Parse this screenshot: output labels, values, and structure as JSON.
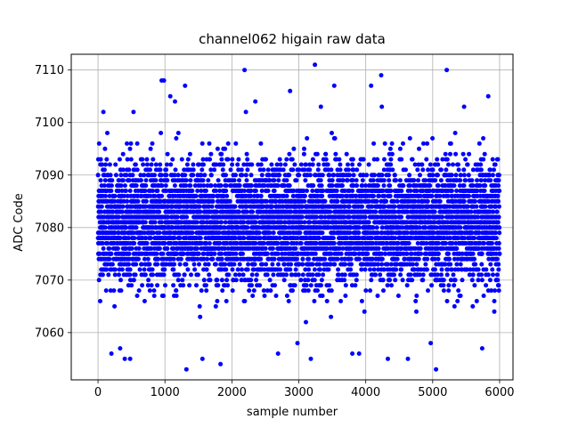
{
  "chart_data": {
    "type": "scatter",
    "title": "channel062 higain raw data",
    "xlabel": "sample number",
    "ylabel": "ADC Code",
    "xlim": [
      -400,
      6200
    ],
    "ylim": [
      7051,
      7113
    ],
    "xticks": [
      0,
      1000,
      2000,
      3000,
      4000,
      5000,
      6000
    ],
    "yticks": [
      7060,
      7070,
      7080,
      7090,
      7100,
      7110
    ],
    "grid": true,
    "marker_color": "#0000ff",
    "series": [
      {
        "sample_count": 6000,
        "core_range": [
          7063,
          7096
        ],
        "median": 7081,
        "notable_points": [
          {
            "x": 950,
            "y": 7108
          },
          {
            "x": 985,
            "y": 7108
          },
          {
            "x": 1080,
            "y": 7105
          },
          {
            "x": 1150,
            "y": 7104
          },
          {
            "x": 1300,
            "y": 7107
          },
          {
            "x": 1320,
            "y": 7053
          },
          {
            "x": 1830,
            "y": 7054
          },
          {
            "x": 2190,
            "y": 7110
          },
          {
            "x": 2350,
            "y": 7104
          },
          {
            "x": 2870,
            "y": 7106
          },
          {
            "x": 3180,
            "y": 7055
          },
          {
            "x": 3240,
            "y": 7111
          },
          {
            "x": 3530,
            "y": 7107
          },
          {
            "x": 4080,
            "y": 7107
          },
          {
            "x": 4230,
            "y": 7109
          },
          {
            "x": 4330,
            "y": 7055
          },
          {
            "x": 4630,
            "y": 7055
          },
          {
            "x": 5050,
            "y": 7053
          },
          {
            "x": 5210,
            "y": 7110
          },
          {
            "x": 5830,
            "y": 7105
          },
          {
            "x": 200,
            "y": 7056
          },
          {
            "x": 330,
            "y": 7057
          },
          {
            "x": 400,
            "y": 7055
          },
          {
            "x": 480,
            "y": 7055
          },
          {
            "x": 1560,
            "y": 7055
          },
          {
            "x": 2690,
            "y": 7056
          },
          {
            "x": 3800,
            "y": 7056
          },
          {
            "x": 3900,
            "y": 7056
          },
          {
            "x": 5740,
            "y": 7057
          },
          {
            "x": 4970,
            "y": 7058
          },
          {
            "x": 2980,
            "y": 7058
          },
          {
            "x": 80,
            "y": 7102
          },
          {
            "x": 530,
            "y": 7102
          },
          {
            "x": 2210,
            "y": 7102
          },
          {
            "x": 3330,
            "y": 7103
          },
          {
            "x": 4240,
            "y": 7103
          },
          {
            "x": 5470,
            "y": 7103
          }
        ]
      }
    ]
  }
}
